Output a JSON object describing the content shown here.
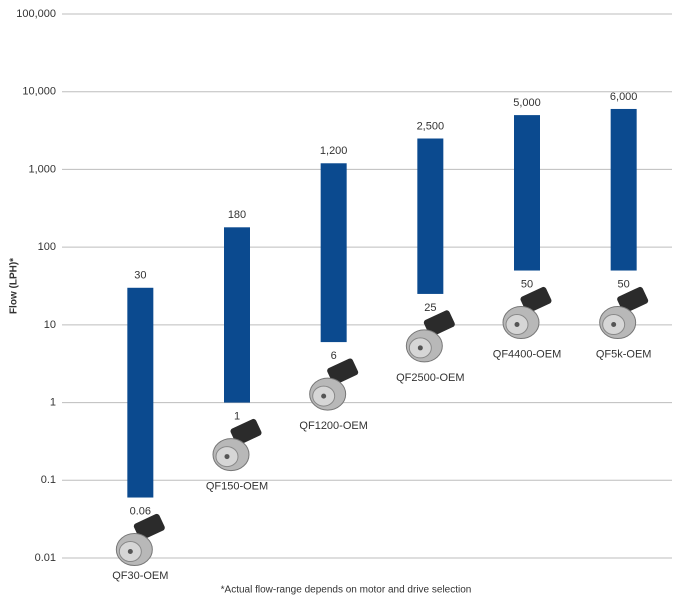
{
  "chart_data": {
    "type": "range-bar",
    "y_label": "Flow (LPH)*",
    "footnote": "*Actual flow-range depends on motor and drive selection",
    "categories": [
      "QF30-OEM",
      "QF150-OEM",
      "QF1200-OEM",
      "QF2500-OEM",
      "QF4400-OEM",
      "QF5k-OEM"
    ],
    "series": [
      {
        "color": "#0b4a8f",
        "values": [
          0.06,
          1,
          6,
          25,
          50,
          50
        ]
      },
      {
        "color": "#0b4a8f",
        "values": [
          30,
          180,
          1200,
          2500,
          5000,
          6000
        ],
        "value_labels": [
          "30",
          "180",
          "1,200",
          "2,500",
          "5,000",
          "6,000"
        ]
      }
    ],
    "log_scale": true,
    "grid": true,
    "ylim": [
      0.01,
      100000
    ],
    "yticks": [
      0.01,
      0.1,
      1,
      10,
      100,
      {
        "value": 1000,
        "label": "1,000"
      },
      {
        "value": 10000,
        "label": "10,000"
      },
      {
        "value": 100000,
        "label": "100,000"
      }
    ]
  }
}
